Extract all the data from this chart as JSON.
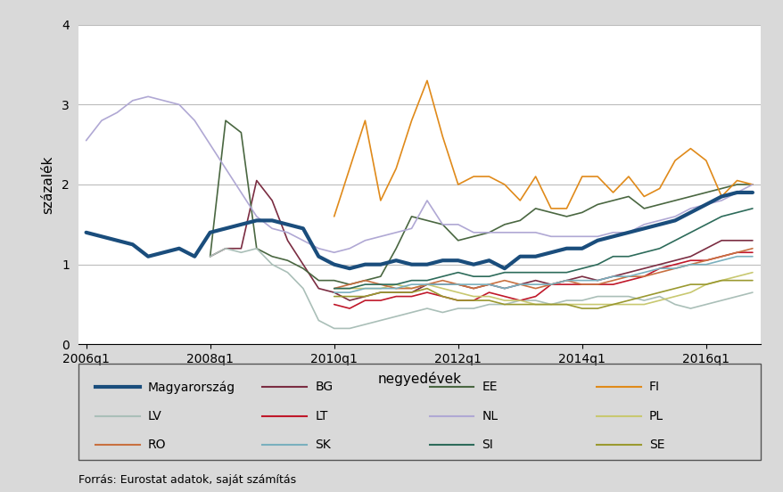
{
  "title": "",
  "xlabel": "negyedévek",
  "ylabel": "százalék",
  "source_text": "Forrás: Eurostat adatok, saját számítás",
  "ylim": [
    0,
    4
  ],
  "yticks": [
    0,
    1,
    2,
    3,
    4
  ],
  "xtick_labels": [
    "2006q1",
    "2008q1",
    "2010q1",
    "2012q1",
    "2014q1",
    "2016q1"
  ],
  "xtick_positions": [
    0,
    8,
    16,
    24,
    32,
    40
  ],
  "series": {
    "Magyarország": {
      "color": "#1a4d7c",
      "linewidth": 3.0,
      "values": [
        1.4,
        1.35,
        1.3,
        1.25,
        1.1,
        1.15,
        1.2,
        1.1,
        1.4,
        1.45,
        1.5,
        1.55,
        1.55,
        1.5,
        1.45,
        1.1,
        1.0,
        0.95,
        1.0,
        1.0,
        1.05,
        1.0,
        1.0,
        1.05,
        1.05,
        1.0,
        1.05,
        0.95,
        1.1,
        1.1,
        1.15,
        1.2,
        1.2,
        1.3,
        1.35,
        1.4,
        1.45,
        1.5,
        1.55,
        1.65,
        1.75,
        1.85,
        1.9,
        1.9
      ]
    },
    "BG": {
      "color": "#7b2d42",
      "linewidth": 1.2,
      "values": [
        null,
        null,
        null,
        null,
        null,
        null,
        null,
        null,
        1.1,
        1.2,
        1.2,
        2.05,
        1.8,
        1.3,
        1.0,
        0.7,
        0.65,
        0.55,
        0.6,
        0.65,
        0.65,
        0.65,
        0.75,
        0.75,
        0.75,
        0.7,
        0.75,
        0.7,
        0.75,
        0.8,
        0.75,
        0.8,
        0.85,
        0.8,
        0.85,
        0.9,
        0.95,
        1.0,
        1.05,
        1.1,
        1.2,
        1.3,
        1.3,
        1.3
      ]
    },
    "EE": {
      "color": "#4a6741",
      "linewidth": 1.2,
      "values": [
        null,
        null,
        null,
        null,
        null,
        null,
        null,
        null,
        1.1,
        2.8,
        2.65,
        1.2,
        1.1,
        1.05,
        0.95,
        0.8,
        0.8,
        0.75,
        0.8,
        0.85,
        1.2,
        1.6,
        1.55,
        1.5,
        1.3,
        1.35,
        1.4,
        1.5,
        1.55,
        1.7,
        1.65,
        1.6,
        1.65,
        1.75,
        1.8,
        1.85,
        1.7,
        1.75,
        1.8,
        1.85,
        1.9,
        1.95,
        2.0,
        2.0
      ]
    },
    "FI": {
      "color": "#e08a1a",
      "linewidth": 1.2,
      "values": [
        null,
        null,
        null,
        null,
        null,
        null,
        null,
        null,
        null,
        null,
        null,
        null,
        null,
        null,
        null,
        null,
        1.6,
        2.2,
        2.8,
        1.8,
        2.2,
        2.8,
        3.3,
        2.6,
        2.0,
        2.1,
        2.1,
        2.0,
        1.8,
        2.1,
        1.7,
        1.7,
        2.1,
        2.1,
        1.9,
        2.1,
        1.85,
        1.95,
        2.3,
        2.45,
        2.3,
        1.85,
        2.05,
        2.0
      ]
    },
    "LV": {
      "color": "#aabfb8",
      "linewidth": 1.2,
      "values": [
        null,
        null,
        null,
        null,
        null,
        null,
        null,
        null,
        1.1,
        1.2,
        1.15,
        1.2,
        1.0,
        0.9,
        0.7,
        0.3,
        0.2,
        0.2,
        0.25,
        0.3,
        0.35,
        0.4,
        0.45,
        0.4,
        0.45,
        0.45,
        0.5,
        0.5,
        0.55,
        0.55,
        0.5,
        0.55,
        0.55,
        0.6,
        0.6,
        0.6,
        0.55,
        0.6,
        0.5,
        0.45,
        0.5,
        0.55,
        0.6,
        0.65
      ]
    },
    "LT": {
      "color": "#c0182a",
      "linewidth": 1.2,
      "values": [
        null,
        null,
        null,
        null,
        null,
        null,
        null,
        null,
        null,
        null,
        null,
        null,
        null,
        null,
        null,
        null,
        0.5,
        0.45,
        0.55,
        0.55,
        0.6,
        0.6,
        0.65,
        0.6,
        0.55,
        0.55,
        0.65,
        0.6,
        0.55,
        0.6,
        0.75,
        0.75,
        0.75,
        0.75,
        0.75,
        0.8,
        0.85,
        0.95,
        1.0,
        1.05,
        1.05,
        1.1,
        1.15,
        1.15
      ]
    },
    "NL": {
      "color": "#b0a8d4",
      "linewidth": 1.2,
      "values": [
        2.55,
        2.8,
        2.9,
        3.05,
        3.1,
        3.05,
        3.0,
        2.8,
        2.5,
        2.2,
        1.9,
        1.6,
        1.45,
        1.4,
        1.3,
        1.2,
        1.15,
        1.2,
        1.3,
        1.35,
        1.4,
        1.45,
        1.8,
        1.5,
        1.5,
        1.4,
        1.4,
        1.4,
        1.4,
        1.4,
        1.35,
        1.35,
        1.35,
        1.35,
        1.4,
        1.4,
        1.5,
        1.55,
        1.6,
        1.7,
        1.75,
        1.8,
        1.9,
        2.0
      ]
    },
    "PL": {
      "color": "#c8c870",
      "linewidth": 1.2,
      "values": [
        null,
        null,
        null,
        null,
        null,
        null,
        null,
        null,
        null,
        null,
        null,
        null,
        null,
        null,
        null,
        null,
        0.7,
        0.7,
        0.7,
        0.7,
        0.75,
        0.7,
        0.75,
        0.7,
        0.65,
        0.6,
        0.6,
        0.55,
        0.55,
        0.5,
        0.5,
        0.5,
        0.5,
        0.5,
        0.5,
        0.5,
        0.5,
        0.55,
        0.6,
        0.65,
        0.75,
        0.8,
        0.85,
        0.9
      ]
    },
    "RO": {
      "color": "#c87040",
      "linewidth": 1.2,
      "values": [
        null,
        null,
        null,
        null,
        null,
        null,
        null,
        null,
        null,
        null,
        null,
        null,
        null,
        null,
        null,
        null,
        0.7,
        0.75,
        0.8,
        0.75,
        0.7,
        0.7,
        0.75,
        0.8,
        0.75,
        0.7,
        0.75,
        0.8,
        0.75,
        0.7,
        0.75,
        0.8,
        0.75,
        0.75,
        0.8,
        0.85,
        0.85,
        0.9,
        0.95,
        1.0,
        1.05,
        1.1,
        1.15,
        1.2
      ]
    },
    "SK": {
      "color": "#7ab0be",
      "linewidth": 1.2,
      "values": [
        null,
        null,
        null,
        null,
        null,
        null,
        null,
        null,
        null,
        null,
        null,
        null,
        null,
        null,
        null,
        null,
        0.65,
        0.65,
        0.7,
        0.7,
        0.7,
        0.75,
        0.75,
        0.75,
        0.75,
        0.75,
        0.75,
        0.7,
        0.75,
        0.75,
        0.75,
        0.8,
        0.8,
        0.8,
        0.85,
        0.85,
        0.9,
        0.95,
        0.95,
        1.0,
        1.0,
        1.05,
        1.1,
        1.1
      ]
    },
    "SI": {
      "color": "#2d6b5a",
      "linewidth": 1.2,
      "values": [
        null,
        null,
        null,
        null,
        null,
        null,
        null,
        null,
        null,
        null,
        null,
        null,
        null,
        null,
        null,
        null,
        0.7,
        0.7,
        0.75,
        0.75,
        0.75,
        0.8,
        0.8,
        0.85,
        0.9,
        0.85,
        0.85,
        0.9,
        0.9,
        0.9,
        0.9,
        0.9,
        0.95,
        1.0,
        1.1,
        1.1,
        1.15,
        1.2,
        1.3,
        1.4,
        1.5,
        1.6,
        1.65,
        1.7
      ]
    },
    "SE": {
      "color": "#9a9930",
      "linewidth": 1.2,
      "values": [
        null,
        null,
        null,
        null,
        null,
        null,
        null,
        null,
        null,
        null,
        null,
        null,
        null,
        null,
        null,
        null,
        0.6,
        0.6,
        0.6,
        0.65,
        0.65,
        0.65,
        0.7,
        0.6,
        0.55,
        0.55,
        0.55,
        0.5,
        0.5,
        0.5,
        0.5,
        0.5,
        0.45,
        0.45,
        0.5,
        0.55,
        0.6,
        0.65,
        0.7,
        0.75,
        0.75,
        0.8,
        0.8,
        0.8
      ]
    }
  },
  "legend_order": [
    "Magyarország",
    "BG",
    "EE",
    "FI",
    "LV",
    "LT",
    "NL",
    "PL",
    "RO",
    "SK",
    "SI",
    "SE"
  ],
  "background_color": "#d9d9d9",
  "plot_bg_color": "#ffffff",
  "legend_bg_color": "#ffffff"
}
